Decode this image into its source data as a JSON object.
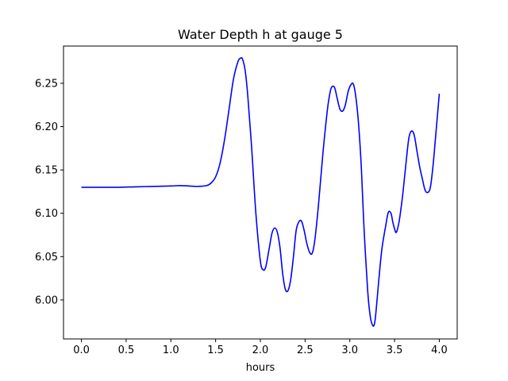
{
  "chart_data": {
    "type": "line",
    "title": "Water Depth h at gauge 5",
    "xlabel": "hours",
    "ylabel": "",
    "xlim": [
      -0.2,
      4.2
    ],
    "ylim": [
      5.955,
      6.293
    ],
    "grid": false,
    "legend": "none",
    "xticks": [
      0.0,
      0.5,
      1.0,
      1.5,
      2.0,
      2.5,
      3.0,
      3.5,
      4.0
    ],
    "xtick_labels": [
      "0.0",
      "0.5",
      "1.0",
      "1.5",
      "2.0",
      "2.5",
      "3.0",
      "3.5",
      "4.0"
    ],
    "yticks": [
      6.0,
      6.05,
      6.1,
      6.15,
      6.2,
      6.25
    ],
    "ytick_labels": [
      "6.00",
      "6.05",
      "6.10",
      "6.15",
      "6.20",
      "6.25"
    ],
    "series": [
      {
        "color": "#0000ff",
        "x": [
          0.0,
          0.2,
          0.4,
          0.6,
          0.8,
          1.0,
          1.1,
          1.2,
          1.3,
          1.4,
          1.45,
          1.5,
          1.55,
          1.6,
          1.65,
          1.7,
          1.75,
          1.78,
          1.8,
          1.83,
          1.86,
          1.9,
          1.95,
          2.0,
          2.03,
          2.06,
          2.1,
          2.13,
          2.16,
          2.19,
          2.22,
          2.25,
          2.28,
          2.31,
          2.34,
          2.37,
          2.4,
          2.43,
          2.46,
          2.49,
          2.52,
          2.55,
          2.58,
          2.61,
          2.65,
          2.7,
          2.75,
          2.78,
          2.8,
          2.83,
          2.86,
          2.89,
          2.92,
          2.95,
          2.98,
          3.01,
          3.04,
          3.07,
          3.1,
          3.13,
          3.16,
          3.2,
          3.23,
          3.26,
          3.28,
          3.3,
          3.33,
          3.36,
          3.4,
          3.43,
          3.46,
          3.48,
          3.5,
          3.52,
          3.55,
          3.58,
          3.6,
          3.63,
          3.66,
          3.69,
          3.72,
          3.75,
          3.78,
          3.81,
          3.84,
          3.87,
          3.9,
          3.93,
          3.96,
          4.0
        ],
        "y": [
          6.13,
          6.13,
          6.13,
          6.1305,
          6.131,
          6.1315,
          6.132,
          6.1315,
          6.131,
          6.132,
          6.135,
          6.142,
          6.158,
          6.185,
          6.22,
          6.255,
          6.275,
          6.279,
          6.278,
          6.265,
          6.235,
          6.18,
          6.1,
          6.045,
          6.035,
          6.038,
          6.06,
          6.077,
          6.083,
          6.078,
          6.06,
          6.03,
          6.012,
          6.011,
          6.024,
          6.05,
          6.08,
          6.09,
          6.091,
          6.08,
          6.065,
          6.055,
          6.054,
          6.07,
          6.11,
          6.17,
          6.22,
          6.24,
          6.246,
          6.245,
          6.232,
          6.22,
          6.218,
          6.225,
          6.24,
          6.248,
          6.249,
          6.232,
          6.2,
          6.15,
          6.08,
          6.01,
          5.98,
          5.97,
          5.975,
          5.995,
          6.03,
          6.06,
          6.085,
          6.101,
          6.1,
          6.09,
          6.082,
          6.078,
          6.09,
          6.112,
          6.13,
          6.16,
          6.187,
          6.195,
          6.19,
          6.172,
          6.154,
          6.14,
          6.127,
          6.124,
          6.13,
          6.155,
          6.19,
          6.238
        ]
      }
    ]
  }
}
